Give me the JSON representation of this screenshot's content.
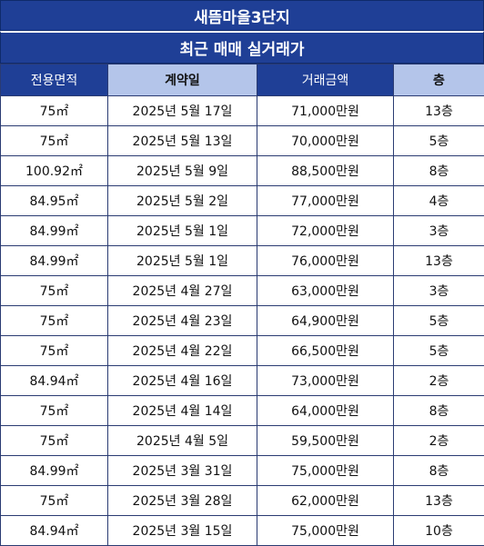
{
  "title": "새뜸마을3단지",
  "subtitle": "최근 매매 실거래가",
  "columns": [
    "전용면적",
    "계약일",
    "거래금액",
    "층"
  ],
  "rows": [
    {
      "area": "75㎡",
      "date": "2025년 5월 17일",
      "price": "71,000만원",
      "floor": "13층"
    },
    {
      "area": "75㎡",
      "date": "2025년 5월 13일",
      "price": "70,000만원",
      "floor": "5층"
    },
    {
      "area": "100.92㎡",
      "date": "2025년 5월 9일",
      "price": "88,500만원",
      "floor": "8층"
    },
    {
      "area": "84.95㎡",
      "date": "2025년 5월 2일",
      "price": "77,000만원",
      "floor": "4층"
    },
    {
      "area": "84.99㎡",
      "date": "2025년 5월 1일",
      "price": "72,000만원",
      "floor": "3층"
    },
    {
      "area": "84.99㎡",
      "date": "2025년 5월 1일",
      "price": "76,000만원",
      "floor": "13층"
    },
    {
      "area": "75㎡",
      "date": "2025년 4월 27일",
      "price": "63,000만원",
      "floor": "3층"
    },
    {
      "area": "75㎡",
      "date": "2025년 4월 23일",
      "price": "64,900만원",
      "floor": "5층"
    },
    {
      "area": "75㎡",
      "date": "2025년 4월 22일",
      "price": "66,500만원",
      "floor": "5층"
    },
    {
      "area": "84.94㎡",
      "date": "2025년 4월 16일",
      "price": "73,000만원",
      "floor": "2층"
    },
    {
      "area": "75㎡",
      "date": "2025년 4월 14일",
      "price": "64,000만원",
      "floor": "8층"
    },
    {
      "area": "75㎡",
      "date": "2025년 4월 5일",
      "price": "59,500만원",
      "floor": "2층"
    },
    {
      "area": "84.99㎡",
      "date": "2025년 3월 31일",
      "price": "75,000만원",
      "floor": "8층"
    },
    {
      "area": "75㎡",
      "date": "2025년 3월 28일",
      "price": "62,000만원",
      "floor": "13층"
    },
    {
      "area": "84.94㎡",
      "date": "2025년 3월 15일",
      "price": "75,000만원",
      "floor": "10층"
    }
  ]
}
